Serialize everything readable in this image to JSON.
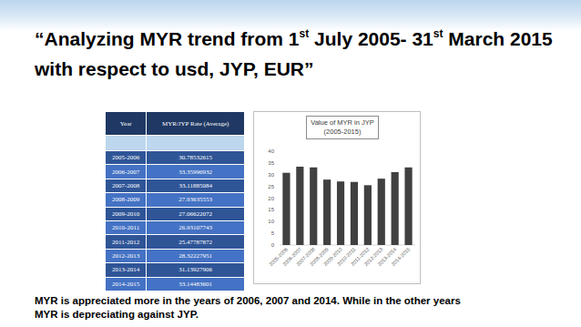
{
  "title": [
    "“Analyzing MYR trend from 1",
    "st",
    " July 2005- 31",
    "st",
    " March 2015 with respect to usd, JYP, EUR”"
  ],
  "table": {
    "header": [
      "Year",
      "MYR/JYP Rate (Average)"
    ],
    "rows": [
      [
        "2005-2006",
        "30.78532615"
      ],
      [
        "2006-2007",
        "33.35996932"
      ],
      [
        "2007-2008",
        "33.11885084"
      ],
      [
        "2008-2009",
        "27.93635553"
      ],
      [
        "2009-2010",
        "27.06622072"
      ],
      [
        "2010-2011",
        "26.93107743"
      ],
      [
        "2011-2012",
        "25.47787872"
      ],
      [
        "2012-2013",
        "28.32227951"
      ],
      [
        "2013-2014",
        "31.13927906"
      ],
      [
        "2014-2015",
        "33.14483601"
      ]
    ]
  },
  "chart_data": {
    "type": "bar",
    "title": "Value of MYR in JYP (2005-2015)",
    "categories": [
      "2005-2006",
      "2006-2007",
      "2007-2008",
      "2008-2009",
      "2009-2010",
      "2010-2011",
      "2011-2012",
      "2012-2013",
      "2013-2014",
      "2014-2015"
    ],
    "values": [
      30.8,
      33.4,
      33.1,
      27.9,
      27.1,
      26.9,
      25.5,
      28.3,
      31.1,
      33.1
    ],
    "color": "#404040",
    "ylim": [
      0,
      40
    ],
    "yticks": [
      0,
      5,
      10,
      15,
      20,
      25,
      30,
      35,
      40
    ],
    "grid": false
  },
  "caption": "MYR is appreciated more in the years of 2006, 2007 and 2014. While in the other years MYR is depreciating against JYP."
}
